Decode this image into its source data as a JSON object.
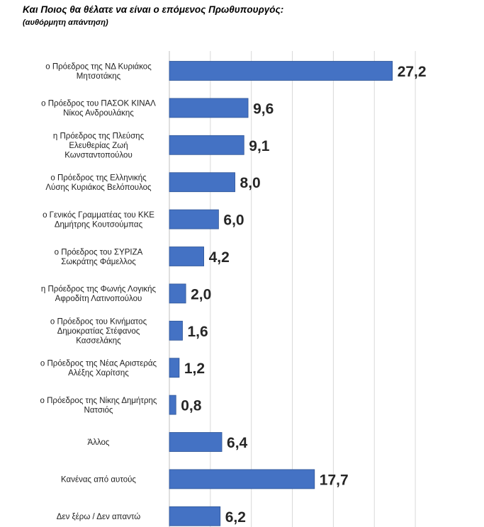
{
  "title": "Και Ποιος θα θέλατε να είναι ο επόμενος Πρωθυπουργός:",
  "subtitle": "(αυθόρμητη απάντηση)",
  "colors": {
    "bar": "#4472C4",
    "bar_border": "#2F5597",
    "grid": "#D9D9D9"
  },
  "chart_data": {
    "type": "bar",
    "orientation": "horizontal",
    "xlim": [
      0,
      30
    ],
    "grid": true,
    "categories": [
      [
        "ο Πρόεδρος της ΝΔ Κυριάκος",
        "Μητσοτάκης"
      ],
      [
        "ο Πρόεδρος του ΠΑΣΟΚ ΚΙΝΑΛ",
        "Νίκος Ανδρουλάκης"
      ],
      [
        "η Πρόεδρος της Πλεύσης",
        "Ελευθερίας Ζωή",
        "Κωνσταντοπούλου"
      ],
      [
        "ο Πρόεδρος της Ελληνικής",
        "Λύσης Κυριάκος Βελόπουλος"
      ],
      [
        "ο Γενικός Γραμματέας του ΚΚΕ",
        "Δημήτρης Κουτσούμπας"
      ],
      [
        "ο Πρόεδρος του ΣΥΡΙΖΑ",
        "Σωκράτης Φάμελλος"
      ],
      [
        "η Πρόεδρος της Φωνής Λογικής",
        "Αφροδίτη Λατινοπούλου"
      ],
      [
        "ο Πρόεδρος του Κινήματος",
        "Δημοκρατίας Στέφανος",
        "Κασσελάκης"
      ],
      [
        "ο Πρόεδρος της Νέας Αριστεράς",
        "Αλέξης Χαρίτσης"
      ],
      [
        "ο Πρόεδρος της Νίκης Δημήτρης",
        "Νατσιός"
      ],
      [
        "Άλλος"
      ],
      [
        "Κανένας από αυτούς"
      ],
      [
        "Δεν ξέρω / Δεν απαντώ"
      ]
    ],
    "values": [
      27.2,
      9.6,
      9.1,
      8.0,
      6.0,
      4.2,
      2.0,
      1.6,
      1.2,
      0.8,
      6.4,
      17.7,
      6.2
    ],
    "value_labels": [
      "27,2",
      "9,6",
      "9,1",
      "8,0",
      "6,0",
      "4,2",
      "2,0",
      "1,6",
      "1,2",
      "0,8",
      "6,4",
      "17,7",
      "6,2"
    ]
  }
}
